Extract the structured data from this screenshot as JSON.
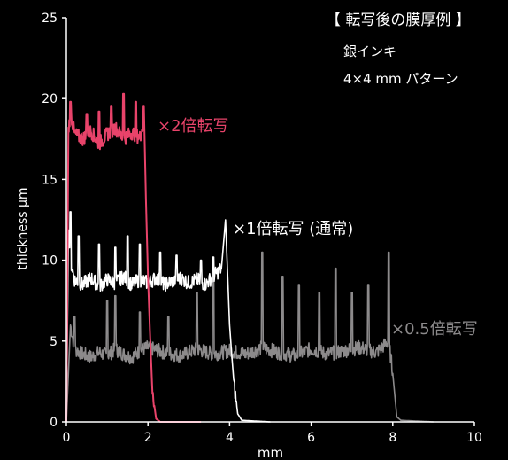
{
  "chart_data": {
    "type": "line",
    "xlabel": "mm",
    "ylabel": "thickness μm",
    "xlim": [
      0,
      10
    ],
    "ylim": [
      0,
      25
    ],
    "x_ticks": [
      "0",
      "2",
      "4",
      "6",
      "8",
      "10"
    ],
    "y_ticks": [
      "0",
      "5",
      "10",
      "15",
      "20",
      "25"
    ],
    "grid": false,
    "annotation": {
      "title": "【 転写後の膜厚例 】",
      "line1": "銀インキ",
      "line2": "4×4 mm パターン"
    },
    "series": [
      {
        "name": "×0.5倍転写",
        "color": "#8c8a8b",
        "x": [
          0.0,
          0.1,
          0.2,
          0.4,
          0.6,
          0.8,
          1.0,
          1.2,
          1.4,
          1.6,
          1.8,
          2.0,
          2.4,
          2.8,
          3.2,
          3.6,
          4.0,
          4.4,
          4.8,
          5.2,
          5.6,
          6.0,
          6.4,
          6.8,
          7.2,
          7.6,
          7.9,
          8.0,
          8.1,
          8.2,
          9.0
        ],
        "y": [
          0.0,
          6.0,
          4.5,
          4.2,
          4.0,
          4.3,
          4.1,
          4.5,
          4.2,
          4.0,
          4.4,
          4.6,
          4.3,
          4.1,
          4.5,
          4.2,
          4.4,
          4.2,
          4.6,
          4.3,
          4.1,
          4.5,
          4.2,
          4.4,
          4.6,
          4.3,
          5.0,
          3.0,
          0.3,
          0.1,
          0.0
        ],
        "spikes": [
          [
            0.2,
            6.5
          ],
          [
            1.0,
            7.5
          ],
          [
            1.2,
            7.8
          ],
          [
            1.8,
            6.8
          ],
          [
            2.5,
            6.5
          ],
          [
            3.2,
            8.0
          ],
          [
            3.6,
            9.5
          ],
          [
            4.8,
            10.5
          ],
          [
            5.3,
            9.0
          ],
          [
            5.7,
            8.5
          ],
          [
            6.2,
            8.0
          ],
          [
            6.6,
            9.5
          ],
          [
            7.0,
            8.0
          ],
          [
            7.4,
            8.5
          ],
          [
            7.9,
            10.5
          ]
        ]
      },
      {
        "name": "×1倍転写 (通常)",
        "color": "#ffffff",
        "x": [
          0.0,
          0.05,
          0.1,
          0.2,
          0.4,
          0.6,
          0.8,
          1.0,
          1.2,
          1.4,
          1.6,
          1.8,
          2.0,
          2.2,
          2.4,
          2.6,
          2.8,
          3.0,
          3.2,
          3.4,
          3.6,
          3.8,
          3.9,
          4.0,
          4.1,
          4.2,
          4.3,
          5.0
        ],
        "y": [
          0.0,
          12.0,
          10.0,
          8.8,
          8.5,
          8.9,
          8.4,
          8.8,
          8.6,
          9.0,
          8.5,
          8.8,
          8.6,
          8.9,
          8.5,
          8.7,
          8.9,
          8.6,
          8.8,
          8.5,
          9.0,
          9.5,
          12.5,
          6.0,
          2.5,
          0.5,
          0.1,
          0.0
        ],
        "spikes": [
          [
            0.1,
            13.0
          ],
          [
            0.3,
            11.5
          ],
          [
            0.8,
            11.0
          ],
          [
            1.2,
            10.8
          ],
          [
            1.5,
            11.5
          ],
          [
            1.8,
            11.0
          ],
          [
            2.3,
            10.5
          ],
          [
            2.7,
            10.3
          ],
          [
            3.3,
            10.0
          ],
          [
            3.6,
            10.2
          ]
        ]
      },
      {
        "name": "×2倍転写",
        "color": "#e8436a",
        "x": [
          0.0,
          0.05,
          0.1,
          0.2,
          0.4,
          0.6,
          0.8,
          1.0,
          1.2,
          1.4,
          1.6,
          1.8,
          1.9,
          2.0,
          2.1,
          2.2,
          2.3,
          3.3
        ],
        "y": [
          0.0,
          18.0,
          19.2,
          17.8,
          17.5,
          18.0,
          17.2,
          17.8,
          18.2,
          17.5,
          17.9,
          17.6,
          18.5,
          9.0,
          2.0,
          0.2,
          0.0,
          0.0
        ],
        "spikes": [
          [
            0.1,
            19.8
          ],
          [
            0.5,
            19.0
          ],
          [
            0.8,
            19.2
          ],
          [
            1.1,
            19.5
          ],
          [
            1.4,
            20.3
          ],
          [
            1.7,
            19.8
          ],
          [
            1.9,
            19.5
          ]
        ]
      }
    ]
  }
}
